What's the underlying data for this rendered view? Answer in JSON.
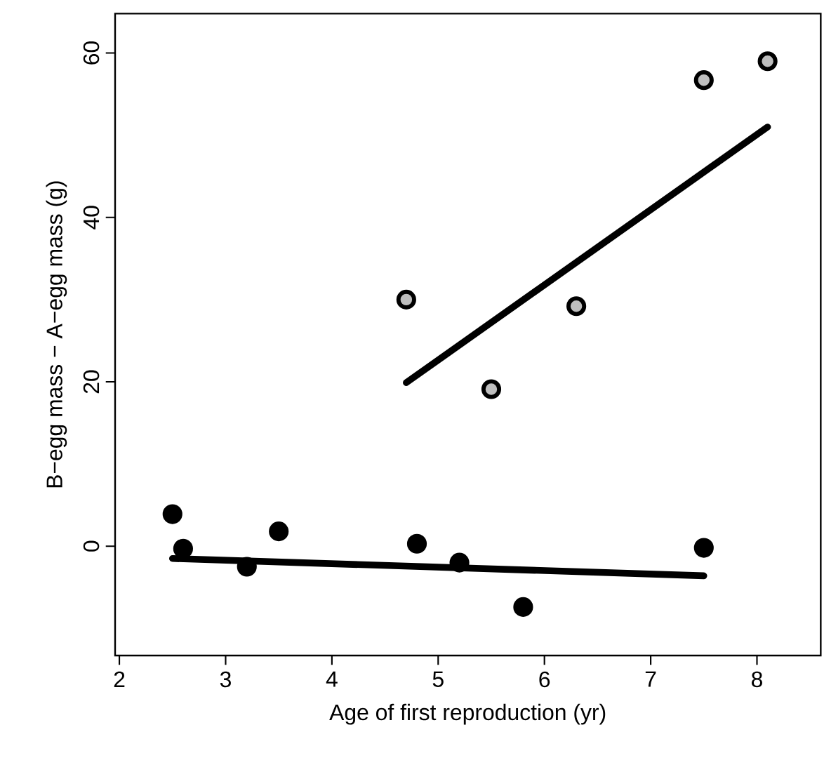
{
  "chart_data": {
    "type": "scatter",
    "xlabel": "Age of first reproduction (yr)",
    "ylabel": "B−egg mass − A−egg mass (g)",
    "xlim": [
      1.96,
      8.6
    ],
    "ylim": [
      -13.3,
      64.8
    ],
    "xticks": [
      2,
      3,
      4,
      5,
      6,
      7,
      8
    ],
    "yticks": [
      0,
      20,
      40,
      60
    ],
    "series": [
      {
        "color": "#000000",
        "marker": "circle",
        "x": [
          2.5,
          2.6,
          3.2,
          3.5,
          4.8,
          5.2,
          5.8,
          7.5
        ],
        "values": [
          3.9,
          -0.3,
          -2.5,
          1.8,
          0.3,
          -2.0,
          -7.4,
          -0.2
        ]
      },
      {
        "color": "#bebebe",
        "marker": "circle",
        "x": [
          4.7,
          5.5,
          6.3,
          7.5,
          8.1
        ],
        "values": [
          30.0,
          19.1,
          29.2,
          56.7,
          59.0
        ]
      },
      {
        "type": "line",
        "color": "#000000",
        "marker": "none",
        "x": [
          2.5,
          7.5
        ],
        "values": [
          -1.5,
          -3.6
        ]
      },
      {
        "type": "line",
        "color": "#000000",
        "marker": "none",
        "x": [
          4.7,
          8.1
        ],
        "values": [
          19.9,
          51.0
        ]
      }
    ]
  }
}
